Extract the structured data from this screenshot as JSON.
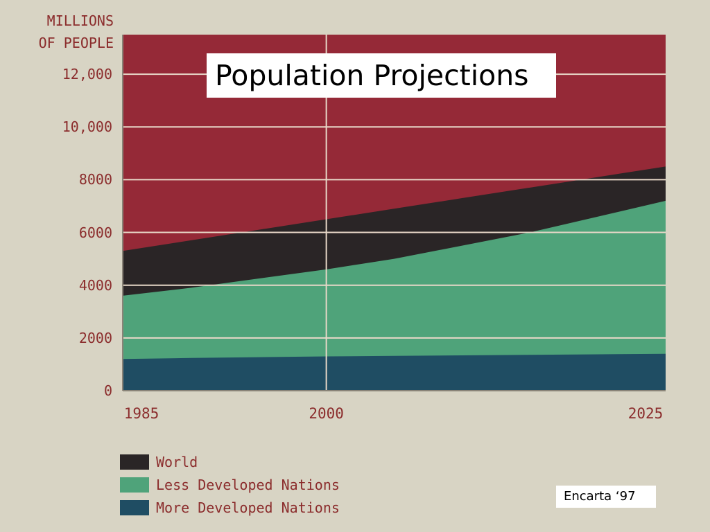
{
  "chart_data": {
    "type": "area",
    "title": "Population Projections",
    "ylabel": [
      "MILLIONS",
      "OF PEOPLE"
    ],
    "xlabel": "",
    "xlim": [
      1985,
      2025
    ],
    "ylim": [
      0,
      13500
    ],
    "x_ticks": [
      "1985",
      "2000",
      "2025"
    ],
    "y_ticks": [
      "0",
      "2000",
      "4000",
      "6000",
      "8000",
      "10,000",
      "12,000"
    ],
    "x": [
      1985,
      1990,
      1995,
      2000,
      2005,
      2010,
      2015,
      2020,
      2025
    ],
    "grid": true,
    "stacked": true,
    "series": [
      {
        "name": "More Developed Nations",
        "values": [
          1200,
          1240,
          1270,
          1300,
          1320,
          1340,
          1360,
          1380,
          1400
        ],
        "color": "#1f4d63"
      },
      {
        "name": "Less Developed Nations",
        "values": [
          3600,
          3900,
          4250,
          4600,
          5000,
          5500,
          6000,
          6600,
          7200
        ],
        "color": "#4fa37a"
      },
      {
        "name": "World",
        "values": [
          5300,
          5700,
          6100,
          6500,
          6900,
          7300,
          7700,
          8100,
          8500
        ],
        "color": "#2a2526"
      }
    ],
    "background_color": "#952937",
    "legend": [
      "World",
      "Less Developed Nations",
      "More Developed Nations"
    ],
    "legend_position": "bottom-left"
  },
  "colors": {
    "page_background": "#d8d4c4",
    "label_text": "#8b2c2c",
    "plot_background": "#952937",
    "gridline": "#e8d8c8"
  },
  "source": "Encarta ‘97"
}
